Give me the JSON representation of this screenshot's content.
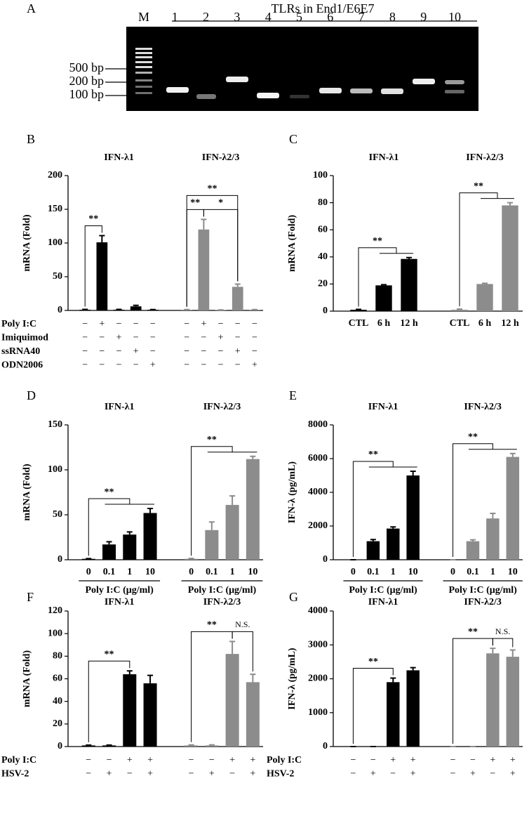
{
  "gel": {
    "label": "A",
    "title": "TLRs in End1/E6E7",
    "lanes": [
      "M",
      "1",
      "2",
      "3",
      "4",
      "5",
      "6",
      "7",
      "8",
      "9",
      "10"
    ],
    "size_markers": [
      "500 bp",
      "200 bp",
      "100 bp"
    ]
  },
  "chart_data": [
    {
      "label": "B",
      "type": "bar",
      "ylabel": "mRNA (Fold)",
      "ylim": [
        0,
        200
      ],
      "yticks": [
        0,
        50,
        100,
        150,
        200
      ],
      "series": [
        {
          "name": "IFN-λ1",
          "color": "#000000",
          "values": [
            1,
            101,
            1,
            6,
            1
          ],
          "errors": [
            0.5,
            10,
            0.5,
            1.5,
            0.3
          ]
        },
        {
          "name": "IFN-λ2/3",
          "color": "#8c8c8c",
          "values": [
            1,
            120,
            0.5,
            35,
            1
          ],
          "errors": [
            0.3,
            15,
            0.3,
            4,
            0.3
          ]
        }
      ],
      "annotations": [
        {
          "text": "**",
          "series": 0,
          "from": 0,
          "to": [
            1
          ]
        },
        {
          "text": "**",
          "series": 1,
          "from": 0,
          "to": [
            1
          ]
        },
        {
          "text": "*",
          "series": 1,
          "from": 1,
          "to": [
            3
          ]
        },
        {
          "text": "**",
          "series": 1,
          "from": 0,
          "to": [
            3
          ]
        }
      ],
      "treatments": [
        {
          "name": "Poly I:C",
          "signs": [
            "−",
            "+",
            "−",
            "−",
            "−",
            "−",
            "+",
            "−",
            "−",
            "−"
          ]
        },
        {
          "name": "Imiquimod",
          "signs": [
            "−",
            "−",
            "+",
            "−",
            "−",
            "−",
            "−",
            "+",
            "−",
            "−"
          ]
        },
        {
          "name": "ssRNA40",
          "signs": [
            "−",
            "−",
            "−",
            "+",
            "−",
            "−",
            "−",
            "−",
            "+",
            "−"
          ]
        },
        {
          "name": "ODN2006",
          "signs": [
            "−",
            "−",
            "−",
            "−",
            "+",
            "−",
            "−",
            "−",
            "−",
            "+"
          ]
        }
      ]
    },
    {
      "label": "C",
      "type": "bar",
      "ylabel": "mRNA (Fold)",
      "ylim": [
        0,
        100
      ],
      "yticks": [
        0,
        20,
        40,
        60,
        80,
        100
      ],
      "series": [
        {
          "name": "IFN-λ1",
          "color": "#000000",
          "categories": [
            "CTL",
            "6 h",
            "12 h"
          ],
          "values": [
            1,
            19,
            38.5
          ],
          "errors": [
            0.3,
            0.5,
            1
          ]
        },
        {
          "name": "IFN-λ2/3",
          "color": "#8c8c8c",
          "categories": [
            "CTL",
            "6 h",
            "12 h"
          ],
          "values": [
            1,
            20,
            78
          ],
          "errors": [
            0.5,
            0.5,
            2
          ]
        }
      ],
      "annotations": [
        {
          "text": "**",
          "series": 0,
          "from": 0,
          "to": [
            1,
            2
          ]
        },
        {
          "text": "**",
          "series": 1,
          "from": 0,
          "to": [
            1,
            2
          ]
        }
      ]
    },
    {
      "label": "D",
      "type": "bar",
      "ylabel": "mRNA (Fold)",
      "ylim": [
        0,
        150
      ],
      "yticks": [
        0,
        50,
        100,
        150
      ],
      "series": [
        {
          "name": "IFN-λ1",
          "color": "#000000",
          "categories": [
            "0",
            "0.1",
            "1",
            "10"
          ],
          "xlabel": "Poly I:C (μg/ml)",
          "values": [
            1,
            17,
            28,
            52
          ],
          "errors": [
            0.3,
            3,
            3,
            5
          ]
        },
        {
          "name": "IFN-λ2/3",
          "color": "#8c8c8c",
          "categories": [
            "0",
            "0.1",
            "1",
            "10"
          ],
          "xlabel": "Poly I:C (μg/ml)",
          "values": [
            1,
            33,
            61,
            112
          ],
          "errors": [
            0.5,
            9,
            10,
            3
          ]
        }
      ],
      "annotations": [
        {
          "text": "**",
          "series": 0,
          "from": 0,
          "to": [
            1,
            2,
            3
          ]
        },
        {
          "text": "**",
          "series": 1,
          "from": 0,
          "to": [
            1,
            2,
            3
          ]
        }
      ]
    },
    {
      "label": "E",
      "type": "bar",
      "ylabel": "IFN-λ (pg/mL)",
      "ylim": [
        0,
        8000
      ],
      "yticks": [
        0,
        2000,
        4000,
        6000,
        8000
      ],
      "series": [
        {
          "name": "IFN-λ1",
          "color": "#000000",
          "categories": [
            "0",
            "0.1",
            "1",
            "10"
          ],
          "xlabel": "Poly I:C (μg/ml)",
          "values": [
            0,
            1100,
            1850,
            5000
          ],
          "errors": [
            0,
            100,
            100,
            250
          ]
        },
        {
          "name": "IFN-λ2/3",
          "color": "#8c8c8c",
          "categories": [
            "0",
            "0.1",
            "1",
            "10"
          ],
          "xlabel": "Poly I:C (μg/ml)",
          "values": [
            0,
            1100,
            2450,
            6100
          ],
          "errors": [
            0,
            80,
            300,
            200
          ]
        }
      ],
      "annotations": [
        {
          "text": "**",
          "series": 0,
          "from": 0,
          "to": [
            1,
            2,
            3
          ]
        },
        {
          "text": "**",
          "series": 1,
          "from": 0,
          "to": [
            1,
            2,
            3
          ]
        }
      ]
    },
    {
      "label": "F",
      "type": "bar",
      "ylabel": "mRNA (Fold)",
      "ylim": [
        0,
        120
      ],
      "yticks": [
        0,
        20,
        40,
        60,
        80,
        100,
        120
      ],
      "series": [
        {
          "name": "IFN-λ1",
          "color": "#000000",
          "values": [
            1,
            1,
            64,
            56
          ],
          "errors": [
            0.3,
            0.3,
            3,
            7
          ]
        },
        {
          "name": "IFN-λ2/3",
          "color": "#8c8c8c",
          "values": [
            1,
            1,
            82,
            57
          ],
          "errors": [
            0.5,
            0.5,
            11,
            7
          ]
        }
      ],
      "annotations": [
        {
          "text": "**",
          "series": 0,
          "from": 0,
          "to": [
            2
          ]
        },
        {
          "text": "**",
          "series": 1,
          "from": 0,
          "to": [
            2
          ]
        },
        {
          "text": "N.S.",
          "series": 1,
          "from": 2,
          "to": [
            3
          ]
        }
      ],
      "treatments": [
        {
          "name": "Poly I:C",
          "signs": [
            "−",
            "−",
            "+",
            "+",
            "−",
            "−",
            "+",
            "+"
          ]
        },
        {
          "name": "HSV-2",
          "signs": [
            "−",
            "+",
            "−",
            "+",
            "−",
            "+",
            "−",
            "+"
          ]
        }
      ]
    },
    {
      "label": "G",
      "type": "bar",
      "ylabel": "IFN-λ (pg/mL)",
      "ylim": [
        0,
        4000
      ],
      "yticks": [
        0,
        1000,
        2000,
        3000,
        4000
      ],
      "series": [
        {
          "name": "IFN-λ1",
          "color": "#000000",
          "values": [
            0,
            0,
            1900,
            2250
          ],
          "errors": [
            0,
            0,
            120,
            80
          ]
        },
        {
          "name": "IFN-λ2/3",
          "color": "#8c8c8c",
          "values": [
            0,
            0,
            2750,
            2650
          ],
          "errors": [
            0,
            0,
            150,
            200
          ]
        }
      ],
      "annotations": [
        {
          "text": "**",
          "series": 0,
          "from": 0,
          "to": [
            2
          ]
        },
        {
          "text": "**",
          "series": 1,
          "from": 0,
          "to": [
            2
          ]
        },
        {
          "text": "N.S.",
          "series": 1,
          "from": 2,
          "to": [
            3
          ]
        }
      ],
      "treatments": [
        {
          "name": "Poly I:C",
          "signs": [
            "−",
            "−",
            "+",
            "+",
            "−",
            "−",
            "+",
            "+"
          ]
        },
        {
          "name": "HSV-2",
          "signs": [
            "−",
            "+",
            "−",
            "+",
            "−",
            "+",
            "−",
            "+"
          ]
        }
      ]
    }
  ]
}
